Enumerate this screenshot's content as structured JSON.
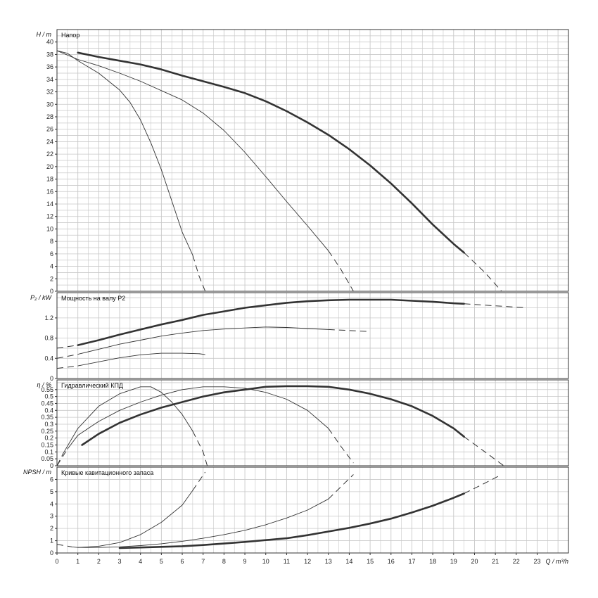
{
  "chart_data": {
    "type": "line",
    "colors": {
      "grid": "#c8c8c8",
      "frame": "#333333",
      "curve": "#333333"
    },
    "x_axis": {
      "label": "Q / m³/h",
      "range": [
        0,
        24.5
      ],
      "ticks": [
        "0",
        "1",
        "2",
        "3",
        "4",
        "5",
        "6",
        "7",
        "8",
        "9",
        "10",
        "11",
        "12",
        "13",
        "14",
        "15",
        "16",
        "17",
        "18",
        "19",
        "20",
        "21",
        "22",
        "23"
      ]
    },
    "panels": [
      {
        "id": "head",
        "title": "Напор",
        "ylabel": "H / m",
        "ylim": [
          0,
          42
        ],
        "ytick_step": 2,
        "grid_step": 1,
        "yticks": [
          "0",
          "2",
          "4",
          "6",
          "8",
          "10",
          "12",
          "14",
          "16",
          "18",
          "20",
          "22",
          "24",
          "26",
          "28",
          "30",
          "32",
          "34",
          "36",
          "38",
          "40"
        ],
        "series": [
          {
            "weight": "thin",
            "solid": [
              [
                0,
                38.6
              ],
              [
                0.5,
                38.2
              ],
              [
                1,
                37
              ],
              [
                2,
                35
              ],
              [
                3,
                32.3
              ],
              [
                3.5,
                30.3
              ],
              [
                4,
                27.5
              ],
              [
                4.5,
                23.8
              ],
              [
                5,
                19.5
              ],
              [
                5.5,
                14.5
              ],
              [
                6,
                9.5
              ],
              [
                6.5,
                5.8
              ]
            ],
            "dashed": [
              [
                6.5,
                5.8
              ],
              [
                6.8,
                2.5
              ],
              [
                7.1,
                0
              ]
            ]
          },
          {
            "weight": "thin",
            "solid": [
              [
                0,
                38.6
              ],
              [
                1,
                37.2
              ],
              [
                2,
                36.2
              ],
              [
                3,
                35
              ],
              [
                4,
                33.7
              ],
              [
                5,
                32.2
              ],
              [
                6,
                30.7
              ],
              [
                7,
                28.6
              ],
              [
                8,
                25.8
              ],
              [
                9,
                22.3
              ],
              [
                10,
                18.4
              ],
              [
                11,
                14.4
              ],
              [
                12,
                10.5
              ],
              [
                13,
                6.5
              ]
            ],
            "dashed": [
              [
                13,
                6.5
              ],
              [
                13.6,
                3.5
              ],
              [
                14.2,
                0
              ]
            ]
          },
          {
            "weight": "bold",
            "solid": [
              [
                1,
                38.3
              ],
              [
                2,
                37.6
              ],
              [
                3,
                37
              ],
              [
                4,
                36.4
              ],
              [
                5,
                35.6
              ],
              [
                6,
                34.6
              ],
              [
                7,
                33.7
              ],
              [
                8,
                32.8
              ],
              [
                9,
                31.8
              ],
              [
                10,
                30.5
              ],
              [
                11,
                28.9
              ],
              [
                12,
                27.1
              ],
              [
                13,
                25.1
              ],
              [
                14,
                22.8
              ],
              [
                15,
                20.2
              ],
              [
                16,
                17.3
              ],
              [
                17,
                14.1
              ],
              [
                18,
                10.7
              ],
              [
                19,
                7.6
              ],
              [
                19.5,
                6.2
              ]
            ],
            "dashed": [
              [
                19.5,
                6.2
              ],
              [
                20.5,
                3
              ],
              [
                21.3,
                0
              ]
            ]
          }
        ]
      },
      {
        "id": "power",
        "title": "Мощность на валу P2",
        "ylabel": "P₂ / kW",
        "ylim": [
          0,
          1.7
        ],
        "ytick_step": 0.4,
        "grid_step": 0.2,
        "yticks": [
          "0",
          "0.4",
          "0.8",
          "1.2"
        ],
        "series": [
          {
            "weight": "thin",
            "dashed": [
              [
                0,
                0.2
              ],
              [
                1,
                0.25
              ]
            ],
            "solid": [
              [
                1,
                0.25
              ],
              [
                2,
                0.33
              ],
              [
                3,
                0.41
              ],
              [
                4,
                0.47
              ],
              [
                5,
                0.5
              ],
              [
                6,
                0.5
              ],
              [
                6.8,
                0.49
              ]
            ],
            "dashed2": [
              [
                6.8,
                0.49
              ],
              [
                7.2,
                0.47
              ]
            ]
          },
          {
            "weight": "thin",
            "dashed": [
              [
                0,
                0.4
              ],
              [
                1,
                0.48
              ]
            ],
            "solid": [
              [
                1,
                0.48
              ],
              [
                2,
                0.58
              ],
              [
                3,
                0.68
              ],
              [
                4,
                0.76
              ],
              [
                5,
                0.84
              ],
              [
                6,
                0.9
              ],
              [
                7,
                0.95
              ],
              [
                8,
                0.98
              ],
              [
                9,
                1.0
              ],
              [
                10,
                1.02
              ],
              [
                11,
                1.01
              ],
              [
                12,
                0.99
              ],
              [
                13,
                0.97
              ]
            ],
            "dashed2": [
              [
                13,
                0.97
              ],
              [
                14,
                0.95
              ],
              [
                15,
                0.93
              ]
            ]
          },
          {
            "weight": "bold",
            "dashed": [
              [
                0,
                0.6
              ],
              [
                1,
                0.66
              ]
            ],
            "solid": [
              [
                1,
                0.66
              ],
              [
                2,
                0.76
              ],
              [
                3,
                0.87
              ],
              [
                4,
                0.97
              ],
              [
                5,
                1.07
              ],
              [
                6,
                1.16
              ],
              [
                7,
                1.26
              ],
              [
                8,
                1.33
              ],
              [
                9,
                1.4
              ],
              [
                10,
                1.45
              ],
              [
                11,
                1.5
              ],
              [
                12,
                1.53
              ],
              [
                13,
                1.55
              ],
              [
                14,
                1.56
              ],
              [
                15,
                1.56
              ],
              [
                16,
                1.56
              ],
              [
                17,
                1.54
              ],
              [
                18,
                1.52
              ],
              [
                19,
                1.49
              ],
              [
                19.5,
                1.48
              ]
            ],
            "dashed2": [
              [
                19.5,
                1.48
              ],
              [
                21,
                1.44
              ],
              [
                22.5,
                1.4
              ]
            ]
          }
        ]
      },
      {
        "id": "efficiency",
        "title": "Гидравлический КПД",
        "ylabel": "η / %",
        "ylim": [
          0,
          0.62
        ],
        "ytick_step": 0.05,
        "grid_step": 0.05,
        "yticks": [
          "0",
          "0.05",
          "0.1",
          "0.15",
          "0.2",
          "0.25",
          "0.3",
          "0.35",
          "0.4",
          "0.45",
          "0.5",
          "0.55"
        ],
        "series": [
          {
            "weight": "thin",
            "dashed": [
              [
                0,
                0
              ],
              [
                0.3,
                0.09
              ]
            ],
            "solid": [
              [
                0.3,
                0.09
              ],
              [
                1,
                0.27
              ],
              [
                2,
                0.43
              ],
              [
                3,
                0.52
              ],
              [
                4,
                0.57
              ],
              [
                4.5,
                0.57
              ],
              [
                5,
                0.53
              ],
              [
                5.5,
                0.46
              ],
              [
                6,
                0.37
              ],
              [
                6.5,
                0.25
              ]
            ],
            "dashed2": [
              [
                6.5,
                0.25
              ],
              [
                7,
                0.1
              ],
              [
                7.2,
                0
              ]
            ]
          },
          {
            "weight": "thin",
            "dashed": [
              [
                0,
                0
              ],
              [
                0.5,
                0.12
              ]
            ],
            "solid": [
              [
                0.5,
                0.12
              ],
              [
                1,
                0.22
              ],
              [
                2,
                0.32
              ],
              [
                3,
                0.4
              ],
              [
                4,
                0.46
              ],
              [
                5,
                0.51
              ],
              [
                6,
                0.55
              ],
              [
                7,
                0.57
              ],
              [
                8,
                0.57
              ],
              [
                9,
                0.56
              ],
              [
                10,
                0.53
              ],
              [
                11,
                0.48
              ],
              [
                12,
                0.4
              ],
              [
                13,
                0.27
              ]
            ],
            "dashed2": [
              [
                13,
                0.27
              ],
              [
                13.6,
                0.14
              ],
              [
                14.2,
                0.02
              ]
            ]
          },
          {
            "weight": "bold",
            "solid": [
              [
                1.2,
                0.15
              ],
              [
                2,
                0.23
              ],
              [
                3,
                0.31
              ],
              [
                4,
                0.37
              ],
              [
                5,
                0.42
              ],
              [
                6,
                0.46
              ],
              [
                7,
                0.5
              ],
              [
                8,
                0.53
              ],
              [
                9,
                0.55
              ],
              [
                10,
                0.57
              ],
              [
                11,
                0.575
              ],
              [
                12,
                0.575
              ],
              [
                13,
                0.57
              ],
              [
                14,
                0.55
              ],
              [
                15,
                0.52
              ],
              [
                16,
                0.48
              ],
              [
                17,
                0.43
              ],
              [
                18,
                0.36
              ],
              [
                19,
                0.27
              ],
              [
                19.5,
                0.21
              ]
            ],
            "dashed2": [
              [
                19.5,
                0.21
              ],
              [
                20.5,
                0.1
              ],
              [
                21.4,
                0
              ]
            ]
          }
        ]
      },
      {
        "id": "npsh",
        "title": "Кривые кавитационного запаса",
        "ylabel": "NPSH / m",
        "ylim": [
          0,
          7
        ],
        "ytick_step": 1,
        "grid_step": 1,
        "yticks": [
          "0",
          "1",
          "2",
          "3",
          "4",
          "5",
          "6"
        ],
        "series": [
          {
            "weight": "thin",
            "dashed": [
              [
                0,
                0.7
              ],
              [
                0.7,
                0.5
              ]
            ],
            "solid": [
              [
                0.7,
                0.5
              ],
              [
                1,
                0.45
              ],
              [
                2,
                0.55
              ],
              [
                3,
                0.85
              ],
              [
                4,
                1.5
              ],
              [
                5,
                2.5
              ],
              [
                6,
                3.9
              ],
              [
                6.5,
                5.1
              ]
            ],
            "dashed2": [
              [
                6.5,
                5.1
              ],
              [
                7.1,
                6.6
              ]
            ]
          },
          {
            "weight": "thin",
            "solid": [
              [
                1,
                0.45
              ],
              [
                2,
                0.45
              ],
              [
                3,
                0.5
              ],
              [
                4,
                0.6
              ],
              [
                5,
                0.75
              ],
              [
                6,
                0.95
              ],
              [
                7,
                1.2
              ],
              [
                8,
                1.5
              ],
              [
                9,
                1.85
              ],
              [
                10,
                2.3
              ],
              [
                11,
                2.85
              ],
              [
                12,
                3.5
              ],
              [
                13,
                4.4
              ]
            ],
            "dashed2": [
              [
                13,
                4.4
              ],
              [
                13.6,
                5.4
              ],
              [
                14.2,
                6.4
              ]
            ]
          },
          {
            "weight": "bold",
            "solid": [
              [
                3,
                0.4
              ],
              [
                4,
                0.45
              ],
              [
                5,
                0.5
              ],
              [
                6,
                0.55
              ],
              [
                7,
                0.65
              ],
              [
                8,
                0.77
              ],
              [
                9,
                0.9
              ],
              [
                10,
                1.05
              ],
              [
                11,
                1.2
              ],
              [
                12,
                1.45
              ],
              [
                13,
                1.75
              ],
              [
                14,
                2.05
              ],
              [
                15,
                2.4
              ],
              [
                16,
                2.8
              ],
              [
                17,
                3.3
              ],
              [
                18,
                3.85
              ],
              [
                19,
                4.5
              ],
              [
                19.5,
                4.85
              ]
            ],
            "dashed2": [
              [
                19.5,
                4.85
              ],
              [
                20.5,
                5.7
              ],
              [
                21.3,
                6.4
              ]
            ]
          }
        ]
      }
    ]
  }
}
